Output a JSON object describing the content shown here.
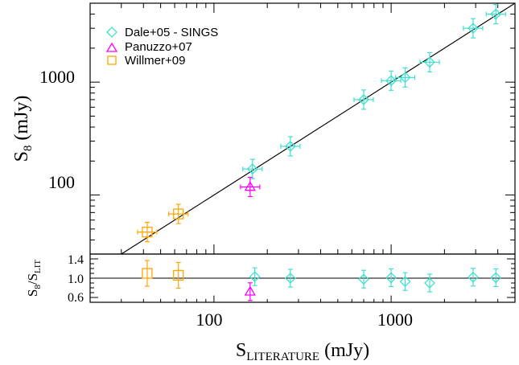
{
  "chart_data": [
    {
      "type": "scatter",
      "title": "",
      "xscale": "log",
      "yscale": "log",
      "xlim": [
        20,
        5000
      ],
      "ylim": [
        30,
        5000
      ],
      "ylabel_main": "S",
      "ylabel_sub": "8",
      "ylabel_unit": " (mJy)",
      "yticks": [
        100,
        1000
      ],
      "ytick_labels": [
        "100",
        "1000"
      ],
      "reference_line": "y = x",
      "legend_position": "top-left",
      "series": [
        {
          "name": "Dale+05 - SINGS",
          "color": "#40e0d0",
          "marker": "diamond",
          "x": [
            165,
            270,
            700,
            1000,
            1200,
            1650,
            2900,
            3900
          ],
          "y": [
            170,
            270,
            700,
            1030,
            1100,
            1500,
            3000,
            4000
          ]
        },
        {
          "name": "Panuzzo+07",
          "color": "#ff00ff",
          "marker": "triangle",
          "x": [
            160
          ],
          "y": [
            118
          ]
        },
        {
          "name": "Willmer+09",
          "color": "#ffa500",
          "marker": "square",
          "x": [
            42,
            63
          ],
          "y": [
            47,
            68
          ]
        }
      ]
    },
    {
      "type": "scatter",
      "title": "",
      "xscale": "log",
      "xlim": [
        20,
        5000
      ],
      "ylim": [
        0.5,
        1.5
      ],
      "xlabel_main": "S",
      "xlabel_sub": "LITERATURE",
      "xlabel_unit": " (mJy)",
      "ylabel_main": "S",
      "ylabel_sub1": "8",
      "ylabel_mid": "/S",
      "ylabel_sub2": "LIT",
      "xticks": [
        100,
        1000
      ],
      "xtick_labels": [
        "100",
        "1000"
      ],
      "yticks": [
        0.6,
        1.0,
        1.4
      ],
      "ytick_labels": [
        "0.6",
        "1.0",
        "1.4"
      ],
      "reference_line": "y = 1",
      "series": [
        {
          "name": "Dale+05 - SINGS",
          "color": "#40e0d0",
          "marker": "diamond",
          "x": [
            170,
            270,
            700,
            1000,
            1200,
            1650,
            2900,
            3900
          ],
          "y": [
            1.03,
            1.0,
            0.98,
            1.01,
            0.93,
            0.9,
            1.02,
            1.01
          ]
        },
        {
          "name": "Panuzzo+07",
          "color": "#ff00ff",
          "marker": "triangle",
          "x": [
            160
          ],
          "y": [
            0.72
          ]
        },
        {
          "name": "Willmer+09",
          "color": "#ffa500",
          "marker": "square",
          "x": [
            42,
            63
          ],
          "y": [
            1.1,
            1.06
          ]
        }
      ]
    }
  ]
}
